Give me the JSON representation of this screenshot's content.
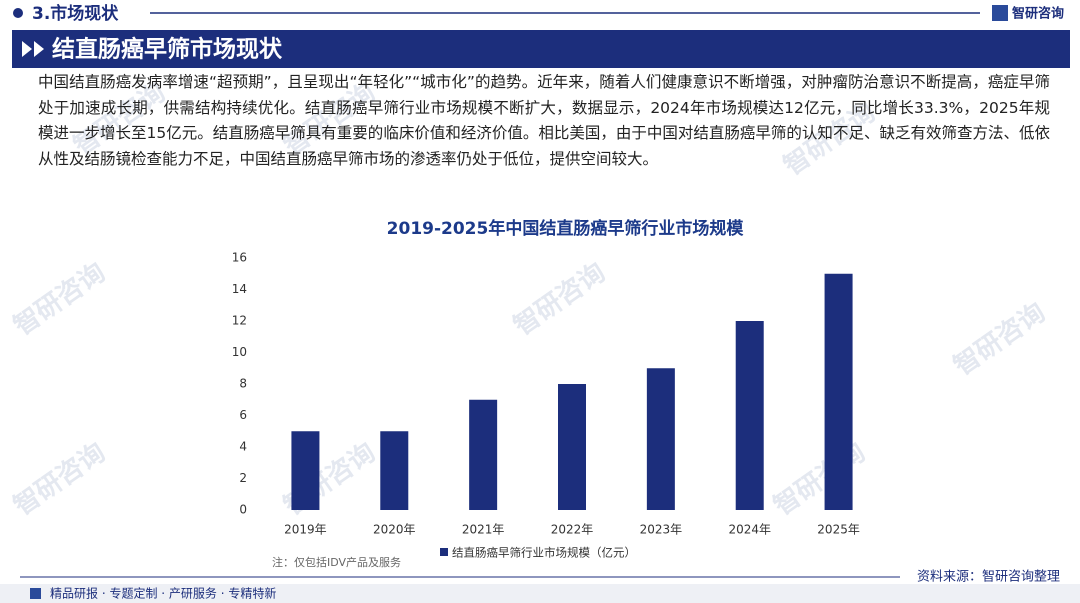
{
  "header": {
    "section": "3.市场现状",
    "brand": "智研咨询"
  },
  "banner": {
    "title": "结直肠癌早筛市场现状"
  },
  "paragraph": "中国结直肠癌发病率增速“超预期”，且呈现出“年轻化”“城市化”的趋势。近年来，随着人们健康意识不断增强，对肿瘤防治意识不断提高，癌症早筛处于加速成长期，供需结构持续优化。结直肠癌早筛行业市场规模不断扩大，数据显示，2024年市场规模达12亿元，同比增长33.3%，2025年规模进一步增长至15亿元。结直肠癌早筛具有重要的临床价值和经济价值。相比美国，由于中国对结直肠癌早筛的认知不足、缺乏有效筛查方法、低依从性及结肠镜检查能力不足，中国结直肠癌早筛市场的渗透率仍处于低位，提供空间较大。",
  "watermark": "智研咨询",
  "chart_data": {
    "type": "bar",
    "title": "2019-2025年中国结直肠癌早筛行业市场规模",
    "categories": [
      "2019年",
      "2020年",
      "2021年",
      "2022年",
      "2023年",
      "2024年",
      "2025年"
    ],
    "series": [
      {
        "name": "结直肠癌早筛行业市场规模（亿元）",
        "color": "#1c2e7c",
        "values": [
          5,
          5,
          7,
          8,
          9,
          12,
          15
        ]
      }
    ],
    "ylim": [
      0,
      16
    ],
    "yticks": [
      0,
      2,
      4,
      6,
      8,
      10,
      12,
      14,
      16
    ],
    "grid": false,
    "note": "注：仅包括IDV产品及服务"
  },
  "source": "资料来源：智研咨询整理",
  "footer": "精品研报 · 专题定制 · 产研服务 · 专精特新"
}
